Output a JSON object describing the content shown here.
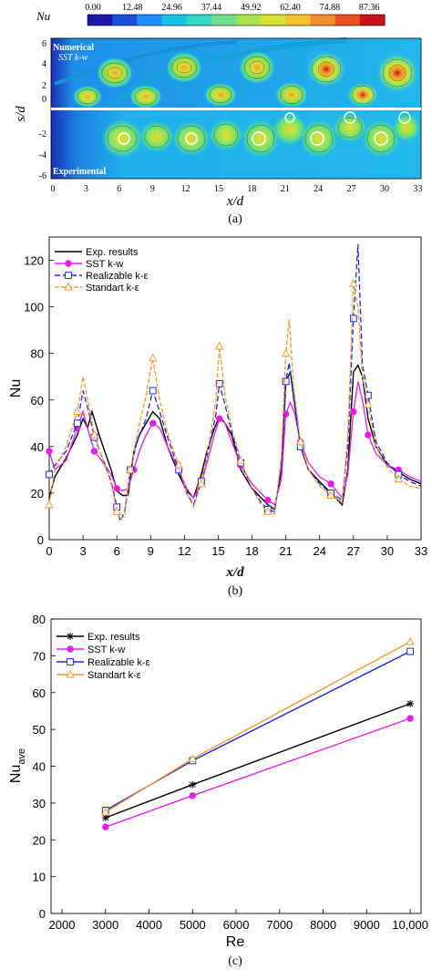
{
  "panel_a": {
    "caption": "(a)",
    "colorbar": {
      "label": "Nu",
      "ticks": [
        "0.00",
        "12.48",
        "24.96",
        "37.44",
        "49.92",
        "62.40",
        "74.88",
        "87.36"
      ],
      "colors": [
        "#1a1aa6",
        "#1d4fd8",
        "#1e90ff",
        "#19c3e8",
        "#35d6c5",
        "#6fe08a",
        "#a9e34b",
        "#d8e033",
        "#f2c12e",
        "#f08c2a",
        "#e8501f",
        "#c8141a"
      ]
    },
    "top_label_1": "Numerical",
    "top_label_2": "SST k-w",
    "bottom_label": "Experimental",
    "xlabel": "x/d",
    "ylabel": "s/d",
    "xticks": [
      "0",
      "3",
      "6",
      "9",
      "12",
      "15",
      "18",
      "21",
      "24",
      "27",
      "30",
      "33"
    ],
    "yticks_top": [
      "6",
      "4",
      "2",
      "0"
    ],
    "yticks_bottom": [
      "-2",
      "-4",
      "-6"
    ]
  },
  "chart_data": [
    {
      "type": "line",
      "caption": "(b)",
      "xlabel": "x/d",
      "ylabel": "Nu",
      "xlim": [
        0,
        33
      ],
      "ylim": [
        0,
        130
      ],
      "xticks": [
        0,
        3,
        6,
        9,
        12,
        15,
        18,
        21,
        24,
        27,
        30,
        33
      ],
      "yticks": [
        0,
        20,
        40,
        60,
        80,
        100,
        120
      ],
      "legend_position": "top-left",
      "series": [
        {
          "name": "Exp. results",
          "color": "#000000",
          "marker": "none",
          "x": [
            0,
            0.5,
            1.5,
            2.5,
            3.0,
            3.4,
            3.8,
            4.5,
            5.5,
            6.0,
            6.5,
            7.0,
            7.5,
            8.0,
            8.6,
            9.2,
            9.8,
            10.5,
            11.5,
            12.2,
            12.8,
            13.5,
            14.0,
            14.6,
            15.1,
            15.6,
            16.2,
            17.0,
            18.0,
            18.8,
            19.4,
            20.0,
            20.6,
            21.0,
            21.4,
            21.8,
            22.3,
            23.0,
            24.0,
            25.0,
            26.0,
            26.5,
            27.0,
            27.4,
            27.8,
            28.3,
            29.0,
            30.0,
            31.0,
            32.0,
            33.0
          ],
          "y": [
            18,
            27,
            35,
            45,
            52,
            48,
            55,
            44,
            30,
            21,
            19,
            19,
            38,
            45,
            50,
            55,
            52,
            40,
            28,
            21,
            18,
            28,
            38,
            47,
            53,
            50,
            45,
            30,
            22,
            18,
            15,
            13,
            30,
            68,
            72,
            58,
            40,
            30,
            25,
            20,
            15,
            30,
            72,
            75,
            70,
            52,
            40,
            32,
            29,
            26,
            24
          ]
        },
        {
          "name": "SST k-w",
          "color": "#e61ee6",
          "marker": "circle",
          "x": [
            0,
            0.5,
            1.5,
            2.5,
            3.0,
            3.5,
            4.0,
            4.5,
            5.5,
            6.0,
            6.5,
            7.0,
            7.5,
            8.0,
            8.6,
            9.2,
            9.8,
            10.5,
            11.5,
            12.2,
            12.8,
            13.5,
            14.0,
            14.6,
            15.1,
            15.6,
            16.2,
            17.0,
            18.0,
            18.8,
            19.4,
            20.0,
            20.6,
            21.0,
            21.4,
            21.8,
            22.3,
            23.0,
            24.0,
            25.0,
            26.0,
            26.5,
            27.0,
            27.4,
            27.8,
            28.3,
            29.0,
            30.0,
            31.0,
            32.0,
            33.0
          ],
          "y": [
            38,
            30,
            34,
            48,
            55,
            46,
            38,
            35,
            28,
            22,
            21,
            22,
            30,
            38,
            45,
            50,
            48,
            40,
            30,
            22,
            18,
            24,
            33,
            44,
            52,
            50,
            42,
            32,
            24,
            20,
            17,
            15,
            26,
            54,
            59,
            54,
            42,
            33,
            27,
            24,
            18,
            28,
            55,
            68,
            60,
            45,
            37,
            32,
            30,
            27,
            25
          ]
        },
        {
          "name": "Realizable k-ε",
          "color": "#1a2ad8",
          "marker": "square",
          "x": [
            0,
            0.5,
            1.5,
            2.5,
            3.0,
            3.5,
            4.0,
            4.5,
            5.5,
            6.0,
            6.3,
            6.7,
            7.2,
            7.8,
            8.6,
            9.2,
            9.8,
            10.5,
            11.5,
            12.2,
            12.8,
            13.5,
            14.2,
            14.8,
            15.1,
            15.6,
            16.2,
            17.0,
            18.0,
            18.8,
            19.4,
            20.0,
            20.6,
            21.0,
            21.3,
            21.7,
            22.3,
            23.0,
            24.0,
            25.0,
            26.0,
            26.5,
            27.0,
            27.4,
            27.8,
            28.3,
            29.0,
            30.0,
            31.0,
            32.0,
            33.0
          ],
          "y": [
            28,
            32,
            38,
            50,
            64,
            55,
            44,
            38,
            25,
            14,
            8,
            12,
            30,
            42,
            52,
            64,
            55,
            44,
            30,
            20,
            15,
            25,
            40,
            54,
            67,
            58,
            46,
            33,
            22,
            16,
            13,
            12,
            32,
            68,
            76,
            60,
            40,
            30,
            24,
            20,
            17,
            40,
            95,
            127,
            75,
            62,
            42,
            33,
            28,
            25,
            23
          ]
        },
        {
          "name": "Standart k-ε",
          "color": "#f29a3a",
          "marker": "triangle",
          "x": [
            0,
            0.5,
            1.5,
            2.5,
            3.0,
            3.5,
            4.0,
            4.5,
            5.5,
            6.0,
            6.3,
            6.7,
            7.2,
            7.8,
            8.6,
            9.2,
            9.8,
            10.5,
            11.5,
            12.2,
            12.8,
            13.5,
            14.2,
            14.8,
            15.1,
            15.6,
            16.2,
            17.0,
            18.0,
            18.8,
            19.4,
            20.0,
            20.6,
            21.0,
            21.3,
            21.7,
            22.3,
            23.0,
            24.0,
            25.0,
            26.0,
            26.5,
            27.0,
            27.4,
            27.8,
            28.3,
            29.0,
            30.0,
            31.0,
            32.0,
            33.0
          ],
          "y": [
            15,
            30,
            40,
            55,
            70,
            58,
            45,
            38,
            24,
            12,
            9,
            10,
            30,
            45,
            62,
            78,
            60,
            46,
            32,
            20,
            14,
            24,
            42,
            60,
            83,
            62,
            48,
            34,
            22,
            15,
            12,
            11,
            36,
            80,
            95,
            65,
            42,
            30,
            23,
            19,
            16,
            45,
            110,
            100,
            70,
            58,
            40,
            31,
            26,
            23,
            22
          ]
        }
      ]
    },
    {
      "type": "line",
      "caption": "(c)",
      "xlabel": "Re",
      "ylabel": "Nu_ave",
      "xlim": [
        2000,
        10000
      ],
      "ylim": [
        0,
        80
      ],
      "xticks": [
        2000,
        3000,
        4000,
        5000,
        6000,
        7000,
        8000,
        9000,
        10000
      ],
      "xtick_labels": [
        "2000",
        "3000",
        "4000",
        "5000",
        "6000",
        "7000",
        "8000",
        "9000",
        "10,000"
      ],
      "yticks": [
        0,
        10,
        20,
        30,
        40,
        50,
        60,
        70,
        80
      ],
      "legend_position": "top-left",
      "x": [
        3000,
        5000,
        10000
      ],
      "series": [
        {
          "name": "Exp. results",
          "color": "#000000",
          "marker": "star",
          "values": [
            26,
            35,
            57
          ]
        },
        {
          "name": "SST k-w",
          "color": "#e61ee6",
          "marker": "circle",
          "values": [
            23.5,
            32,
            53
          ]
        },
        {
          "name": "Realizable k-ε",
          "color": "#1a2ad8",
          "marker": "square",
          "values": [
            28,
            41.5,
            71.2
          ]
        },
        {
          "name": "Standart k-ε",
          "color": "#f29a3a",
          "marker": "triangle",
          "values": [
            27.5,
            42,
            73.8
          ]
        }
      ]
    }
  ]
}
